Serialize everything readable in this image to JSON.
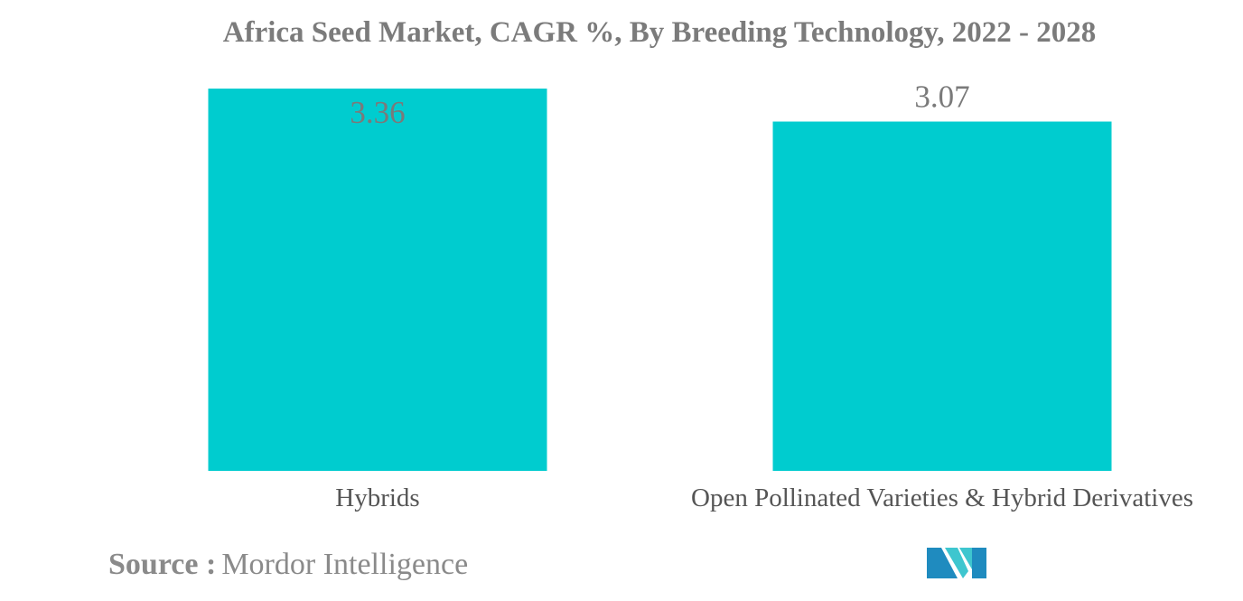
{
  "chart_data": {
    "type": "bar",
    "title": "Africa Seed Market, CAGR %, By Breeding Technology, 2022 - 2028",
    "categories": [
      "Hybrids",
      "Open Pollinated Varieties & Hybrid Derivatives"
    ],
    "values": [
      3.36,
      3.07
    ],
    "data_labels": [
      "3.36",
      "3.07"
    ],
    "ylim": [
      0,
      3.36
    ],
    "grid": false,
    "legend": "none",
    "bar_color": "#00cccf"
  },
  "source": {
    "label": "Source :",
    "value": "Mordor Intelligence"
  },
  "logo": {
    "icon": "mordor-intelligence-logo-icon",
    "colors": [
      "#1f8bbf",
      "#3ec6cf"
    ]
  }
}
